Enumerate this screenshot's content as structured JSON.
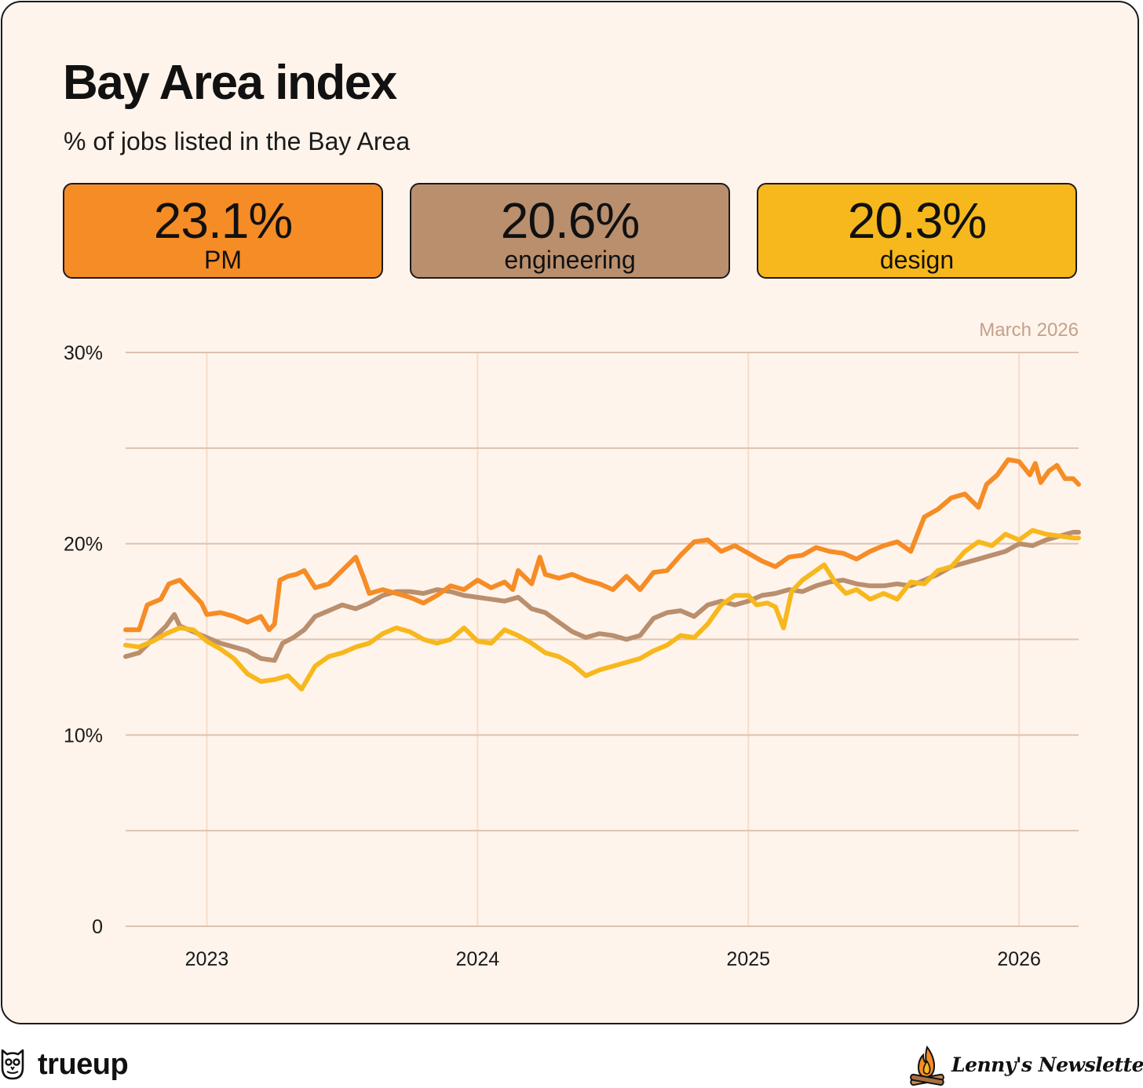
{
  "colors": {
    "background": "#fff4ec",
    "grid": "#dcc2b0",
    "pm": "#f68c25",
    "engineering": "#b98f6e",
    "design": "#f7b81d"
  },
  "kpis": [
    {
      "value": "23.1%",
      "label": "PM",
      "color": "#f68c25"
    },
    {
      "value": "20.6%",
      "label": "engineering",
      "color": "#b98f6e"
    },
    {
      "value": "20.3%",
      "label": "design",
      "color": "#f7b81d"
    }
  ],
  "footer": {
    "brand": "trueup",
    "brand_icon": "owl-icon",
    "partner": "Lenny's Newsletter",
    "partner_icon": "campfire-icon"
  },
  "chart_data": {
    "type": "line",
    "title": "Bay Area index",
    "subtitle": "% of jobs listed in the Bay Area",
    "annotation": "March 2026",
    "xlabel": "",
    "ylabel": "",
    "xlim": [
      2022.7,
      2026.22
    ],
    "ylim": [
      0,
      30
    ],
    "x_ticks": [
      2023,
      2024,
      2025,
      2026
    ],
    "x_tick_labels": [
      "2023",
      "2024",
      "2025",
      "2026"
    ],
    "y_ticks": [
      0,
      5,
      10,
      15,
      20,
      25,
      30
    ],
    "y_tick_labels": [
      "0",
      "",
      "10%",
      "",
      "20%",
      "",
      "30%"
    ],
    "grid": true,
    "legend": "none",
    "series": [
      {
        "name": "PM",
        "color": "#f68c25",
        "points": [
          [
            2022.7,
            15.5
          ],
          [
            2022.75,
            15.5
          ],
          [
            2022.78,
            16.8
          ],
          [
            2022.83,
            17.1
          ],
          [
            2022.86,
            17.9
          ],
          [
            2022.9,
            18.1
          ],
          [
            2022.94,
            17.5
          ],
          [
            2022.98,
            16.9
          ],
          [
            2023.0,
            16.3
          ],
          [
            2023.05,
            16.4
          ],
          [
            2023.1,
            16.2
          ],
          [
            2023.15,
            15.9
          ],
          [
            2023.2,
            16.2
          ],
          [
            2023.23,
            15.5
          ],
          [
            2023.25,
            15.8
          ],
          [
            2023.27,
            18.1
          ],
          [
            2023.3,
            18.3
          ],
          [
            2023.33,
            18.4
          ],
          [
            2023.36,
            18.6
          ],
          [
            2023.4,
            17.7
          ],
          [
            2023.45,
            17.9
          ],
          [
            2023.5,
            18.6
          ],
          [
            2023.55,
            19.3
          ],
          [
            2023.58,
            18.2
          ],
          [
            2023.6,
            17.4
          ],
          [
            2023.65,
            17.6
          ],
          [
            2023.7,
            17.4
          ],
          [
            2023.75,
            17.2
          ],
          [
            2023.8,
            16.9
          ],
          [
            2023.85,
            17.3
          ],
          [
            2023.9,
            17.8
          ],
          [
            2023.95,
            17.6
          ],
          [
            2024.0,
            18.1
          ],
          [
            2024.05,
            17.7
          ],
          [
            2024.1,
            18.0
          ],
          [
            2024.13,
            17.6
          ],
          [
            2024.15,
            18.6
          ],
          [
            2024.2,
            17.9
          ],
          [
            2024.23,
            19.3
          ],
          [
            2024.25,
            18.4
          ],
          [
            2024.3,
            18.2
          ],
          [
            2024.35,
            18.4
          ],
          [
            2024.4,
            18.1
          ],
          [
            2024.45,
            17.9
          ],
          [
            2024.5,
            17.6
          ],
          [
            2024.55,
            18.3
          ],
          [
            2024.6,
            17.6
          ],
          [
            2024.65,
            18.5
          ],
          [
            2024.7,
            18.6
          ],
          [
            2024.75,
            19.4
          ],
          [
            2024.8,
            20.1
          ],
          [
            2024.85,
            20.2
          ],
          [
            2024.9,
            19.6
          ],
          [
            2024.95,
            19.9
          ],
          [
            2025.0,
            19.5
          ],
          [
            2025.05,
            19.1
          ],
          [
            2025.1,
            18.8
          ],
          [
            2025.15,
            19.3
          ],
          [
            2025.2,
            19.4
          ],
          [
            2025.25,
            19.8
          ],
          [
            2025.3,
            19.6
          ],
          [
            2025.35,
            19.5
          ],
          [
            2025.4,
            19.2
          ],
          [
            2025.45,
            19.6
          ],
          [
            2025.5,
            19.9
          ],
          [
            2025.55,
            20.1
          ],
          [
            2025.6,
            19.6
          ],
          [
            2025.65,
            21.4
          ],
          [
            2025.7,
            21.8
          ],
          [
            2025.75,
            22.4
          ],
          [
            2025.8,
            22.6
          ],
          [
            2025.85,
            21.9
          ],
          [
            2025.88,
            23.1
          ],
          [
            2025.92,
            23.6
          ],
          [
            2025.96,
            24.4
          ],
          [
            2026.0,
            24.3
          ],
          [
            2026.04,
            23.6
          ],
          [
            2026.06,
            24.2
          ],
          [
            2026.08,
            23.2
          ],
          [
            2026.11,
            23.8
          ],
          [
            2026.14,
            24.1
          ],
          [
            2026.17,
            23.4
          ],
          [
            2026.2,
            23.4
          ],
          [
            2026.22,
            23.1
          ]
        ]
      },
      {
        "name": "engineering",
        "color": "#b98f6e",
        "points": [
          [
            2022.7,
            14.1
          ],
          [
            2022.75,
            14.3
          ],
          [
            2022.8,
            15.0
          ],
          [
            2022.85,
            15.7
          ],
          [
            2022.88,
            16.3
          ],
          [
            2022.9,
            15.7
          ],
          [
            2022.95,
            15.4
          ],
          [
            2023.0,
            15.1
          ],
          [
            2023.05,
            14.8
          ],
          [
            2023.1,
            14.6
          ],
          [
            2023.15,
            14.4
          ],
          [
            2023.2,
            14.0
          ],
          [
            2023.25,
            13.9
          ],
          [
            2023.28,
            14.8
          ],
          [
            2023.32,
            15.1
          ],
          [
            2023.36,
            15.5
          ],
          [
            2023.4,
            16.2
          ],
          [
            2023.45,
            16.5
          ],
          [
            2023.5,
            16.8
          ],
          [
            2023.55,
            16.6
          ],
          [
            2023.6,
            16.9
          ],
          [
            2023.65,
            17.3
          ],
          [
            2023.7,
            17.5
          ],
          [
            2023.75,
            17.5
          ],
          [
            2023.8,
            17.4
          ],
          [
            2023.85,
            17.6
          ],
          [
            2023.9,
            17.5
          ],
          [
            2023.95,
            17.3
          ],
          [
            2024.0,
            17.2
          ],
          [
            2024.05,
            17.1
          ],
          [
            2024.1,
            17.0
          ],
          [
            2024.15,
            17.2
          ],
          [
            2024.2,
            16.6
          ],
          [
            2024.25,
            16.4
          ],
          [
            2024.3,
            15.9
          ],
          [
            2024.35,
            15.4
          ],
          [
            2024.4,
            15.1
          ],
          [
            2024.45,
            15.3
          ],
          [
            2024.5,
            15.2
          ],
          [
            2024.55,
            15.0
          ],
          [
            2024.6,
            15.2
          ],
          [
            2024.65,
            16.1
          ],
          [
            2024.7,
            16.4
          ],
          [
            2024.75,
            16.5
          ],
          [
            2024.8,
            16.2
          ],
          [
            2024.85,
            16.8
          ],
          [
            2024.9,
            17.0
          ],
          [
            2024.95,
            16.8
          ],
          [
            2025.0,
            17.0
          ],
          [
            2025.05,
            17.3
          ],
          [
            2025.1,
            17.4
          ],
          [
            2025.15,
            17.6
          ],
          [
            2025.2,
            17.5
          ],
          [
            2025.25,
            17.8
          ],
          [
            2025.3,
            18.0
          ],
          [
            2025.35,
            18.1
          ],
          [
            2025.4,
            17.9
          ],
          [
            2025.45,
            17.8
          ],
          [
            2025.5,
            17.8
          ],
          [
            2025.55,
            17.9
          ],
          [
            2025.6,
            17.8
          ],
          [
            2025.65,
            18.1
          ],
          [
            2025.7,
            18.4
          ],
          [
            2025.75,
            18.8
          ],
          [
            2025.8,
            19.0
          ],
          [
            2025.85,
            19.2
          ],
          [
            2025.9,
            19.4
          ],
          [
            2025.95,
            19.6
          ],
          [
            2026.0,
            20.0
          ],
          [
            2026.05,
            19.9
          ],
          [
            2026.1,
            20.2
          ],
          [
            2026.15,
            20.4
          ],
          [
            2026.2,
            20.6
          ],
          [
            2026.22,
            20.6
          ]
        ]
      },
      {
        "name": "design",
        "color": "#f7b81d",
        "points": [
          [
            2022.7,
            14.7
          ],
          [
            2022.75,
            14.6
          ],
          [
            2022.8,
            14.9
          ],
          [
            2022.85,
            15.3
          ],
          [
            2022.9,
            15.6
          ],
          [
            2022.95,
            15.5
          ],
          [
            2023.0,
            14.9
          ],
          [
            2023.05,
            14.5
          ],
          [
            2023.1,
            14.0
          ],
          [
            2023.15,
            13.2
          ],
          [
            2023.2,
            12.8
          ],
          [
            2023.25,
            12.9
          ],
          [
            2023.3,
            13.1
          ],
          [
            2023.35,
            12.4
          ],
          [
            2023.4,
            13.6
          ],
          [
            2023.45,
            14.1
          ],
          [
            2023.5,
            14.3
          ],
          [
            2023.55,
            14.6
          ],
          [
            2023.6,
            14.8
          ],
          [
            2023.65,
            15.3
          ],
          [
            2023.7,
            15.6
          ],
          [
            2023.75,
            15.4
          ],
          [
            2023.8,
            15.0
          ],
          [
            2023.85,
            14.8
          ],
          [
            2023.9,
            15.0
          ],
          [
            2023.95,
            15.6
          ],
          [
            2024.0,
            14.9
          ],
          [
            2024.05,
            14.8
          ],
          [
            2024.1,
            15.5
          ],
          [
            2024.15,
            15.2
          ],
          [
            2024.2,
            14.8
          ],
          [
            2024.25,
            14.3
          ],
          [
            2024.3,
            14.1
          ],
          [
            2024.35,
            13.7
          ],
          [
            2024.4,
            13.1
          ],
          [
            2024.45,
            13.4
          ],
          [
            2024.5,
            13.6
          ],
          [
            2024.55,
            13.8
          ],
          [
            2024.6,
            14.0
          ],
          [
            2024.65,
            14.4
          ],
          [
            2024.7,
            14.7
          ],
          [
            2024.75,
            15.2
          ],
          [
            2024.8,
            15.1
          ],
          [
            2024.85,
            15.8
          ],
          [
            2024.9,
            16.8
          ],
          [
            2024.95,
            17.3
          ],
          [
            2025.0,
            17.3
          ],
          [
            2025.03,
            16.8
          ],
          [
            2025.07,
            16.9
          ],
          [
            2025.1,
            16.7
          ],
          [
            2025.13,
            15.6
          ],
          [
            2025.16,
            17.5
          ],
          [
            2025.2,
            18.1
          ],
          [
            2025.25,
            18.6
          ],
          [
            2025.28,
            18.9
          ],
          [
            2025.32,
            18.0
          ],
          [
            2025.36,
            17.4
          ],
          [
            2025.4,
            17.6
          ],
          [
            2025.45,
            17.1
          ],
          [
            2025.5,
            17.4
          ],
          [
            2025.55,
            17.1
          ],
          [
            2025.6,
            18.0
          ],
          [
            2025.65,
            17.9
          ],
          [
            2025.7,
            18.6
          ],
          [
            2025.75,
            18.8
          ],
          [
            2025.8,
            19.6
          ],
          [
            2025.85,
            20.1
          ],
          [
            2025.9,
            19.9
          ],
          [
            2025.95,
            20.5
          ],
          [
            2026.0,
            20.2
          ],
          [
            2026.05,
            20.7
          ],
          [
            2026.1,
            20.5
          ],
          [
            2026.15,
            20.4
          ],
          [
            2026.2,
            20.3
          ],
          [
            2026.22,
            20.3
          ]
        ]
      }
    ]
  }
}
